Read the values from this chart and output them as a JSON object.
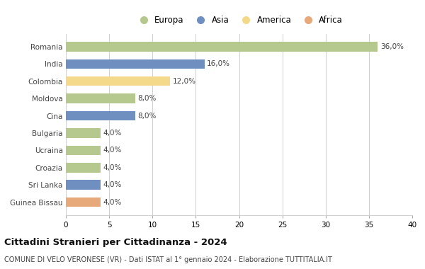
{
  "categories": [
    "Romania",
    "India",
    "Colombia",
    "Moldova",
    "Cina",
    "Bulgaria",
    "Ucraina",
    "Croazia",
    "Sri Lanka",
    "Guinea Bissau"
  ],
  "values": [
    36.0,
    16.0,
    12.0,
    8.0,
    8.0,
    4.0,
    4.0,
    4.0,
    4.0,
    4.0
  ],
  "colors": [
    "#b5c98e",
    "#6e8fc0",
    "#f5d98b",
    "#b5c98e",
    "#6e8fc0",
    "#b5c98e",
    "#b5c98e",
    "#b5c98e",
    "#6e8fc0",
    "#e8a97a"
  ],
  "labels": [
    "36,0%",
    "16,0%",
    "12,0%",
    "8,0%",
    "8,0%",
    "4,0%",
    "4,0%",
    "4,0%",
    "4,0%",
    "4,0%"
  ],
  "xlim": [
    0,
    40
  ],
  "xticks": [
    0,
    5,
    10,
    15,
    20,
    25,
    30,
    35,
    40
  ],
  "legend_labels": [
    "Europa",
    "Asia",
    "America",
    "Africa"
  ],
  "legend_colors": [
    "#b5c98e",
    "#6e8fc0",
    "#f5d98b",
    "#e8a97a"
  ],
  "title": "Cittadini Stranieri per Cittadinanza - 2024",
  "subtitle": "COMUNE DI VELO VERONESE (VR) - Dati ISTAT al 1° gennaio 2024 - Elaborazione TUTTITALIA.IT",
  "bg_color": "#ffffff",
  "grid_color": "#d0d0d0",
  "bar_height": 0.55
}
